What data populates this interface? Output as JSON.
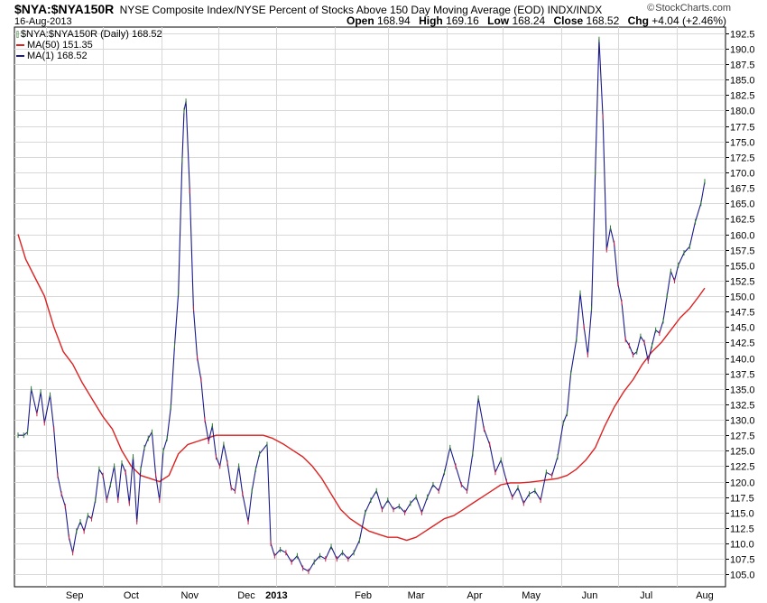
{
  "header": {
    "symbol": "$NYA:$NYA150R",
    "subtitle": "NYSE Composite Index/NYSE Percent of Stocks Above 150 Day Moving Average (EOD)  INDX/INDX",
    "credit": "StockCharts.com",
    "date": "16-Aug-2013",
    "ohlc": [
      {
        "label": "Open",
        "value": "168.94"
      },
      {
        "label": "High",
        "value": "169.16"
      },
      {
        "label": "Low",
        "value": "168.24"
      },
      {
        "label": "Close",
        "value": "168.52"
      },
      {
        "label": "Chg",
        "value": "+4.04 (+2.46%)"
      }
    ]
  },
  "legend": [
    {
      "text": "$NYA:$NYA150R (Daily) 168.52",
      "icon": "ohlc-bars-icon",
      "color": "#2a7b2a"
    },
    {
      "text": "MA(50) 151.35",
      "color": "#dd2222"
    },
    {
      "text": "MA(1) 168.52",
      "color": "#1a1a8c"
    }
  ],
  "colors": {
    "price_line": "#1a1a8c",
    "ma50_line": "#dd2222",
    "grid": "#d8d8d8",
    "up_tick": "#2a7b2a",
    "down_tick": "#cc2244",
    "axis": "#000000"
  },
  "chart_data": {
    "type": "line",
    "title": "$NYA:$NYA150R",
    "xlabel": "",
    "ylabel": "",
    "ylim": [
      103.0,
      193.5
    ],
    "grid": true,
    "legend_position": "top-left",
    "x_tick_labels": [
      "Sep",
      "Oct",
      "Nov",
      "Dec",
      "2013",
      "Feb",
      "Mar",
      "Apr",
      "May",
      "Jun",
      "Jul",
      "Aug"
    ],
    "y_tick_labels": [
      "105.0",
      "107.5",
      "110.0",
      "112.5",
      "115.0",
      "117.5",
      "120.0",
      "122.5",
      "125.0",
      "127.5",
      "130.0",
      "132.5",
      "135.0",
      "137.5",
      "140.0",
      "142.5",
      "145.0",
      "147.5",
      "150.0",
      "152.5",
      "155.0",
      "157.5",
      "160.0",
      "162.5",
      "165.0",
      "167.5",
      "170.0",
      "172.5",
      "175.0",
      "177.5",
      "180.0",
      "182.5",
      "185.0",
      "187.5",
      "190.0",
      "192.5"
    ],
    "x_range": [
      "2012-08-17",
      "2013-08-16"
    ],
    "series": [
      {
        "name": "$NYA:$NYA150R (Daily)",
        "last": 168.52,
        "points": [
          [
            "2012-08-17",
            127.5
          ],
          [
            "2012-08-20",
            127.5
          ],
          [
            "2012-08-22",
            128.0
          ],
          [
            "2012-08-24",
            135.0
          ],
          [
            "2012-08-27",
            131.0
          ],
          [
            "2012-08-29",
            134.5
          ],
          [
            "2012-08-31",
            129.5
          ],
          [
            "2012-09-03",
            134.0
          ],
          [
            "2012-09-05",
            128.5
          ],
          [
            "2012-09-07",
            121.0
          ],
          [
            "2012-09-09",
            118.0
          ],
          [
            "2012-09-11",
            116.0
          ],
          [
            "2012-09-13",
            111.0
          ],
          [
            "2012-09-15",
            108.5
          ],
          [
            "2012-09-17",
            112.0
          ],
          [
            "2012-09-19",
            113.5
          ],
          [
            "2012-09-21",
            112.0
          ],
          [
            "2012-09-23",
            114.5
          ],
          [
            "2012-09-25",
            114.0
          ],
          [
            "2012-09-27",
            117.0
          ],
          [
            "2012-09-29",
            122.0
          ],
          [
            "2012-10-01",
            121.0
          ],
          [
            "2012-10-03",
            117.0
          ],
          [
            "2012-10-05",
            119.5
          ],
          [
            "2012-10-07",
            122.5
          ],
          [
            "2012-10-09",
            117.0
          ],
          [
            "2012-10-11",
            123.0
          ],
          [
            "2012-10-13",
            121.5
          ],
          [
            "2012-10-15",
            116.5
          ],
          [
            "2012-10-17",
            124.0
          ],
          [
            "2012-10-19",
            113.5
          ],
          [
            "2012-10-21",
            122.0
          ],
          [
            "2012-10-23",
            125.5
          ],
          [
            "2012-10-25",
            127.0
          ],
          [
            "2012-10-27",
            128.0
          ],
          [
            "2012-10-29",
            121.0
          ],
          [
            "2012-10-31",
            117.0
          ],
          [
            "2012-11-02",
            125.0
          ],
          [
            "2012-11-04",
            127.0
          ],
          [
            "2012-11-06",
            132.0
          ],
          [
            "2012-11-08",
            142.0
          ],
          [
            "2012-11-10",
            150.5
          ],
          [
            "2012-11-12",
            172.0
          ],
          [
            "2012-11-13",
            180.0
          ],
          [
            "2012-11-14",
            181.5
          ],
          [
            "2012-11-16",
            167.0
          ],
          [
            "2012-11-18",
            148.0
          ],
          [
            "2012-11-20",
            140.0
          ],
          [
            "2012-11-22",
            136.5
          ],
          [
            "2012-11-24",
            130.0
          ],
          [
            "2012-11-26",
            126.5
          ],
          [
            "2012-11-28",
            129.0
          ],
          [
            "2012-11-30",
            124.0
          ],
          [
            "2012-12-02",
            122.5
          ],
          [
            "2012-12-04",
            126.0
          ],
          [
            "2012-12-06",
            123.0
          ],
          [
            "2012-12-08",
            119.0
          ],
          [
            "2012-12-10",
            118.5
          ],
          [
            "2012-12-12",
            122.5
          ],
          [
            "2012-12-14",
            118.0
          ],
          [
            "2012-12-17",
            113.5
          ],
          [
            "2012-12-19",
            118.5
          ],
          [
            "2012-12-21",
            122.0
          ],
          [
            "2012-12-23",
            124.5
          ],
          [
            "2012-12-27",
            126.0
          ],
          [
            "2012-12-29",
            110.0
          ],
          [
            "2012-12-31",
            108.0
          ],
          [
            "2013-01-03",
            109.0
          ],
          [
            "2013-01-06",
            108.5
          ],
          [
            "2013-01-09",
            107.0
          ],
          [
            "2013-01-12",
            108.0
          ],
          [
            "2013-01-15",
            106.0
          ],
          [
            "2013-01-18",
            105.5
          ],
          [
            "2013-01-21",
            107.0
          ],
          [
            "2013-01-24",
            108.0
          ],
          [
            "2013-01-27",
            107.5
          ],
          [
            "2013-01-30",
            109.5
          ],
          [
            "2013-02-02",
            107.5
          ],
          [
            "2013-02-05",
            108.5
          ],
          [
            "2013-02-08",
            107.5
          ],
          [
            "2013-02-11",
            108.5
          ],
          [
            "2013-02-14",
            110.5
          ],
          [
            "2013-02-17",
            115.0
          ],
          [
            "2013-02-20",
            117.0
          ],
          [
            "2013-02-23",
            118.5
          ],
          [
            "2013-02-26",
            115.5
          ],
          [
            "2013-03-01",
            117.0
          ],
          [
            "2013-03-04",
            115.5
          ],
          [
            "2013-03-07",
            116.0
          ],
          [
            "2013-03-10",
            115.0
          ],
          [
            "2013-03-13",
            116.5
          ],
          [
            "2013-03-16",
            117.5
          ],
          [
            "2013-03-19",
            115.0
          ],
          [
            "2013-03-22",
            117.5
          ],
          [
            "2013-03-25",
            119.5
          ],
          [
            "2013-03-28",
            118.5
          ],
          [
            "2013-03-31",
            121.5
          ],
          [
            "2013-04-03",
            125.5
          ],
          [
            "2013-04-06",
            122.5
          ],
          [
            "2013-04-09",
            119.5
          ],
          [
            "2013-04-12",
            118.5
          ],
          [
            "2013-04-15",
            124.5
          ],
          [
            "2013-04-18",
            133.5
          ],
          [
            "2013-04-21",
            128.5
          ],
          [
            "2013-04-24",
            126.0
          ],
          [
            "2013-04-27",
            121.5
          ],
          [
            "2013-04-30",
            123.5
          ],
          [
            "2013-05-03",
            120.0
          ],
          [
            "2013-05-06",
            117.5
          ],
          [
            "2013-05-09",
            119.0
          ],
          [
            "2013-05-12",
            116.5
          ],
          [
            "2013-05-15",
            118.0
          ],
          [
            "2013-05-18",
            118.5
          ],
          [
            "2013-05-21",
            117.0
          ],
          [
            "2013-05-24",
            121.5
          ],
          [
            "2013-05-27",
            121.0
          ],
          [
            "2013-05-30",
            124.0
          ],
          [
            "2013-06-02",
            129.5
          ],
          [
            "2013-06-04",
            131.0
          ],
          [
            "2013-06-06",
            137.5
          ],
          [
            "2013-06-09",
            143.0
          ],
          [
            "2013-06-11",
            150.5
          ],
          [
            "2013-06-13",
            145.0
          ],
          [
            "2013-06-15",
            140.5
          ],
          [
            "2013-06-17",
            148.0
          ],
          [
            "2013-06-19",
            170.0
          ],
          [
            "2013-06-21",
            191.5
          ],
          [
            "2013-06-23",
            179.0
          ],
          [
            "2013-06-25",
            157.5
          ],
          [
            "2013-06-27",
            161.0
          ],
          [
            "2013-06-29",
            158.5
          ],
          [
            "2013-07-01",
            152.0
          ],
          [
            "2013-07-03",
            149.0
          ],
          [
            "2013-07-05",
            143.0
          ],
          [
            "2013-07-07",
            142.0
          ],
          [
            "2013-07-09",
            140.5
          ],
          [
            "2013-07-11",
            141.0
          ],
          [
            "2013-07-13",
            143.5
          ],
          [
            "2013-07-15",
            142.5
          ],
          [
            "2013-07-17",
            139.5
          ],
          [
            "2013-07-19",
            142.0
          ],
          [
            "2013-07-21",
            144.5
          ],
          [
            "2013-07-23",
            144.0
          ],
          [
            "2013-07-25",
            146.0
          ],
          [
            "2013-07-27",
            150.0
          ],
          [
            "2013-07-29",
            154.0
          ],
          [
            "2013-07-31",
            152.5
          ],
          [
            "2013-08-02",
            155.0
          ],
          [
            "2013-08-05",
            157.0
          ],
          [
            "2013-08-08",
            158.0
          ],
          [
            "2013-08-11",
            162.0
          ],
          [
            "2013-08-14",
            165.0
          ],
          [
            "2013-08-16",
            168.5
          ]
        ]
      },
      {
        "name": "MA(50)",
        "last": 151.35,
        "points": [
          [
            "2012-08-17",
            160.0
          ],
          [
            "2012-08-21",
            156.0
          ],
          [
            "2012-08-26",
            153.0
          ],
          [
            "2012-08-31",
            150.0
          ],
          [
            "2012-09-05",
            145.0
          ],
          [
            "2012-09-10",
            141.0
          ],
          [
            "2012-09-15",
            139.0
          ],
          [
            "2012-09-20",
            136.0
          ],
          [
            "2012-09-26",
            133.0
          ],
          [
            "2012-10-01",
            130.5
          ],
          [
            "2012-10-06",
            128.5
          ],
          [
            "2012-10-11",
            125.0
          ],
          [
            "2012-10-16",
            122.5
          ],
          [
            "2012-10-21",
            121.0
          ],
          [
            "2012-10-26",
            120.5
          ],
          [
            "2012-10-31",
            120.0
          ],
          [
            "2012-11-05",
            121.0
          ],
          [
            "2012-11-10",
            124.5
          ],
          [
            "2012-11-15",
            126.0
          ],
          [
            "2012-11-20",
            126.5
          ],
          [
            "2012-11-25",
            127.0
          ],
          [
            "2012-11-30",
            127.5
          ],
          [
            "2012-12-05",
            127.5
          ],
          [
            "2012-12-10",
            127.5
          ],
          [
            "2012-12-15",
            127.5
          ],
          [
            "2012-12-20",
            127.5
          ],
          [
            "2012-12-25",
            127.5
          ],
          [
            "2012-12-30",
            127.0
          ],
          [
            "2013-01-05",
            126.0
          ],
          [
            "2013-01-10",
            125.0
          ],
          [
            "2013-01-15",
            124.0
          ],
          [
            "2013-01-20",
            122.5
          ],
          [
            "2013-01-25",
            120.5
          ],
          [
            "2013-01-30",
            118.0
          ],
          [
            "2013-02-04",
            115.5
          ],
          [
            "2013-02-09",
            114.0
          ],
          [
            "2013-02-14",
            113.0
          ],
          [
            "2013-02-19",
            112.0
          ],
          [
            "2013-02-24",
            111.5
          ],
          [
            "2013-03-01",
            111.0
          ],
          [
            "2013-03-06",
            111.0
          ],
          [
            "2013-03-11",
            110.5
          ],
          [
            "2013-03-16",
            111.0
          ],
          [
            "2013-03-21",
            112.0
          ],
          [
            "2013-03-26",
            113.0
          ],
          [
            "2013-03-31",
            114.0
          ],
          [
            "2013-04-05",
            114.5
          ],
          [
            "2013-04-10",
            115.5
          ],
          [
            "2013-04-15",
            116.5
          ],
          [
            "2013-04-20",
            117.5
          ],
          [
            "2013-04-25",
            118.5
          ],
          [
            "2013-04-30",
            119.5
          ],
          [
            "2013-05-05",
            119.8
          ],
          [
            "2013-05-10",
            119.8
          ],
          [
            "2013-05-15",
            119.9
          ],
          [
            "2013-05-20",
            120.1
          ],
          [
            "2013-05-25",
            120.3
          ],
          [
            "2013-05-30",
            120.5
          ],
          [
            "2013-06-04",
            121.0
          ],
          [
            "2013-06-09",
            122.0
          ],
          [
            "2013-06-14",
            123.5
          ],
          [
            "2013-06-19",
            125.5
          ],
          [
            "2013-06-24",
            129.0
          ],
          [
            "2013-06-29",
            132.0
          ],
          [
            "2013-07-04",
            134.5
          ],
          [
            "2013-07-09",
            136.5
          ],
          [
            "2013-07-14",
            139.0
          ],
          [
            "2013-07-19",
            141.0
          ],
          [
            "2013-07-24",
            142.5
          ],
          [
            "2013-07-29",
            144.5
          ],
          [
            "2013-08-03",
            146.5
          ],
          [
            "2013-08-08",
            148.0
          ],
          [
            "2013-08-13",
            150.0
          ],
          [
            "2013-08-16",
            151.3
          ]
        ]
      }
    ]
  }
}
